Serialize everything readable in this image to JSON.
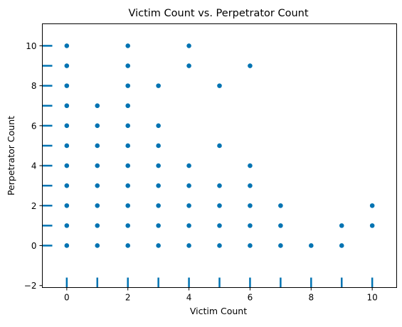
{
  "chart_data": {
    "type": "scatter",
    "title": "Victim Count vs. Perpetrator Count",
    "xlabel": "Victim Count",
    "ylabel": "Perpetrator Count",
    "xlim": [
      -0.8,
      10.8
    ],
    "ylim": [
      -2.1,
      11.1
    ],
    "xticks": [
      0,
      2,
      4,
      6,
      8,
      10
    ],
    "yticks": [
      -2,
      0,
      2,
      4,
      6,
      8,
      10
    ],
    "grid": false,
    "legend": "none",
    "point_color": "#0173b2",
    "rug_color": "#0173b2",
    "points": [
      [
        0,
        0
      ],
      [
        0,
        1
      ],
      [
        0,
        2
      ],
      [
        0,
        3
      ],
      [
        0,
        4
      ],
      [
        0,
        5
      ],
      [
        0,
        6
      ],
      [
        0,
        7
      ],
      [
        0,
        8
      ],
      [
        0,
        9
      ],
      [
        0,
        10
      ],
      [
        1,
        0
      ],
      [
        1,
        1
      ],
      [
        1,
        2
      ],
      [
        1,
        3
      ],
      [
        1,
        4
      ],
      [
        1,
        5
      ],
      [
        1,
        6
      ],
      [
        1,
        7
      ],
      [
        2,
        0
      ],
      [
        2,
        1
      ],
      [
        2,
        2
      ],
      [
        2,
        3
      ],
      [
        2,
        4
      ],
      [
        2,
        5
      ],
      [
        2,
        6
      ],
      [
        2,
        7
      ],
      [
        2,
        8
      ],
      [
        2,
        9
      ],
      [
        2,
        10
      ],
      [
        3,
        0
      ],
      [
        3,
        1
      ],
      [
        3,
        2
      ],
      [
        3,
        3
      ],
      [
        3,
        4
      ],
      [
        3,
        5
      ],
      [
        3,
        6
      ],
      [
        3,
        8
      ],
      [
        4,
        0
      ],
      [
        4,
        1
      ],
      [
        4,
        2
      ],
      [
        4,
        3
      ],
      [
        4,
        4
      ],
      [
        4,
        9
      ],
      [
        4,
        10
      ],
      [
        5,
        0
      ],
      [
        5,
        1
      ],
      [
        5,
        2
      ],
      [
        5,
        3
      ],
      [
        5,
        5
      ],
      [
        5,
        8
      ],
      [
        6,
        0
      ],
      [
        6,
        1
      ],
      [
        6,
        2
      ],
      [
        6,
        3
      ],
      [
        6,
        4
      ],
      [
        6,
        9
      ],
      [
        7,
        0
      ],
      [
        7,
        1
      ],
      [
        7,
        2
      ],
      [
        8,
        0
      ],
      [
        9,
        0
      ],
      [
        9,
        1
      ],
      [
        10,
        1
      ],
      [
        10,
        2
      ]
    ],
    "rug_x": [
      0,
      1,
      2,
      3,
      4,
      5,
      6,
      7,
      8,
      9,
      10
    ],
    "rug_y": [
      0,
      1,
      2,
      3,
      4,
      5,
      6,
      7,
      8,
      9,
      10
    ]
  }
}
